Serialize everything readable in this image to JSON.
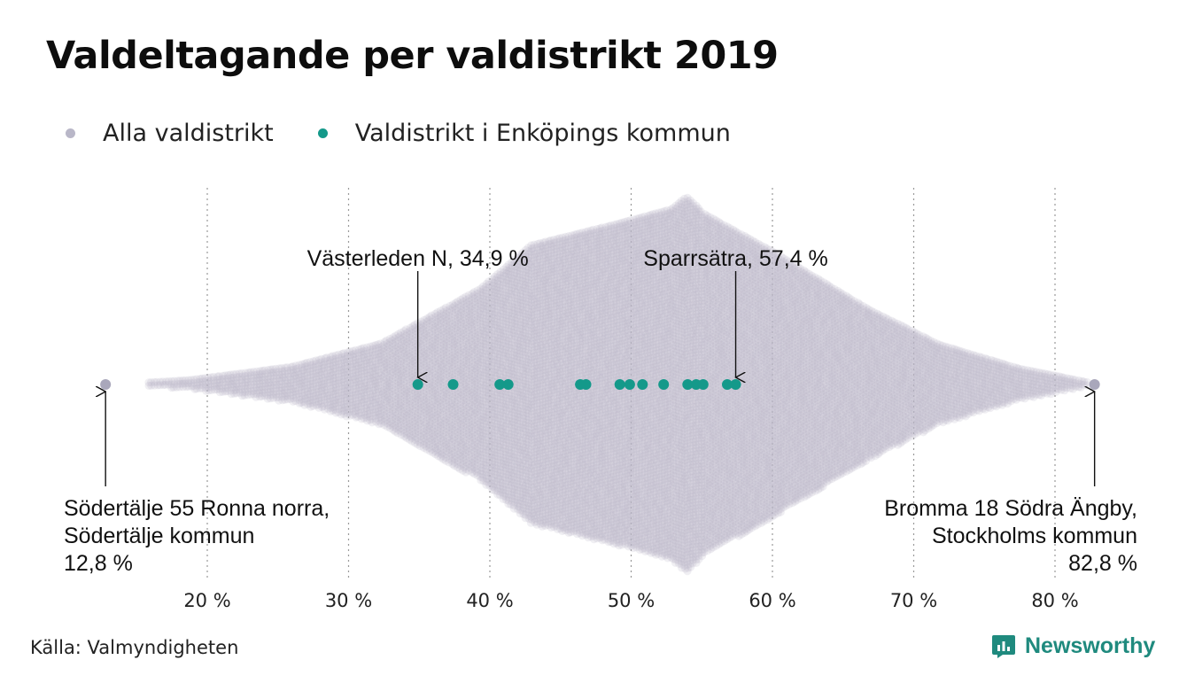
{
  "title": "Valdeltagande per valdistrikt 2019",
  "legend": [
    {
      "label": "Alla valdistrikt",
      "color": "#b9b7c8"
    },
    {
      "label": "Valdistrikt i Enköpings kommun",
      "color": "#14998a"
    }
  ],
  "source": "Källa: Valmyndigheten",
  "brand": {
    "name": "Newsworthy",
    "icon": "newsworthy-logo-icon",
    "color": "#1f8a7e"
  },
  "chart_data": {
    "type": "scatter",
    "subtype": "beeswarm",
    "x_unit": "%",
    "xlim": [
      12.8,
      82.8
    ],
    "x_ticks": [
      20,
      30,
      40,
      50,
      60,
      70,
      80
    ],
    "x_tick_labels": [
      "20 %",
      "30 %",
      "40 %",
      "50 %",
      "60 %",
      "70 %",
      "80 %"
    ],
    "grid": "vertical dotted",
    "legend_position": "top-left",
    "series": [
      {
        "name": "Alla valdistrikt",
        "color": "#b9b7c8",
        "distribution_note": "peak density near 54 %",
        "min": 12.8,
        "max": 82.8
      },
      {
        "name": "Valdistrikt i Enköpings kommun",
        "color": "#14998a",
        "values": [
          34.9,
          37.4,
          40.7,
          41.3,
          46.4,
          46.8,
          49.2,
          49.9,
          50.8,
          52.3,
          54.0,
          54.6,
          55.1,
          56.8,
          57.4
        ]
      }
    ],
    "annotations": [
      {
        "lines": [
          "Västerleden N, 34,9 %"
        ],
        "x": 34.9,
        "position": "above"
      },
      {
        "lines": [
          "Sparrsätra, 57,4 %"
        ],
        "x": 57.4,
        "position": "above"
      },
      {
        "lines": [
          "Södertälje 55 Ronna norra,",
          "Södertälje kommun",
          "12,8 %"
        ],
        "x": 12.8,
        "position": "below-left"
      },
      {
        "lines": [
          "Bromma 18 Södra Ängby,",
          "Stockholms kommun",
          "82,8 %"
        ],
        "x": 82.8,
        "position": "below-right"
      }
    ]
  }
}
